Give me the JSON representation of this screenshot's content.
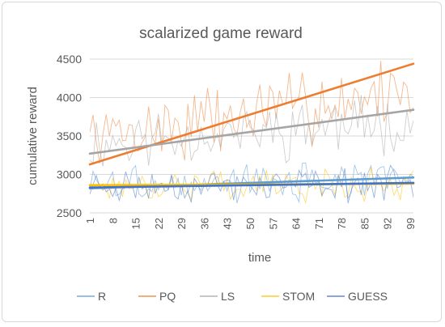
{
  "chart_data": {
    "type": "line",
    "title": "scalarized game reward",
    "xlabel": "time",
    "ylabel": "cumulative reward",
    "ylim": [
      2500,
      4500
    ],
    "yticks": [
      2500,
      3000,
      3500,
      4000,
      4500
    ],
    "xrange": [
      1,
      100
    ],
    "xtick_labels": [
      "1",
      "8",
      "15",
      "22",
      "29",
      "36",
      "43",
      "50",
      "57",
      "64",
      "71",
      "78",
      "85",
      "92",
      "99"
    ],
    "grid": "horizontal",
    "legend_position": "bottom",
    "series": [
      {
        "name": "R",
        "color": "#5b9bd5",
        "trend": [
          2820,
          2960
        ],
        "mean": 2890,
        "amplitude": 260,
        "seed": 3
      },
      {
        "name": "PQ",
        "color": "#ed7d31",
        "trend": [
          3130,
          4440
        ],
        "mean": 3790,
        "amplitude": 520,
        "seed": 7
      },
      {
        "name": "LS",
        "color": "#a5a5a5",
        "trend": [
          3270,
          3840
        ],
        "mean": 3550,
        "amplitude": 420,
        "seed": 11
      },
      {
        "name": "STOM",
        "color": "#ffc000",
        "trend": [
          2860,
          2880
        ],
        "mean": 2870,
        "amplitude": 230,
        "seed": 17
      },
      {
        "name": "GUESS",
        "color": "#4472c4",
        "trend": [
          2830,
          2890
        ],
        "mean": 2860,
        "amplitude": 240,
        "seed": 23
      }
    ]
  }
}
